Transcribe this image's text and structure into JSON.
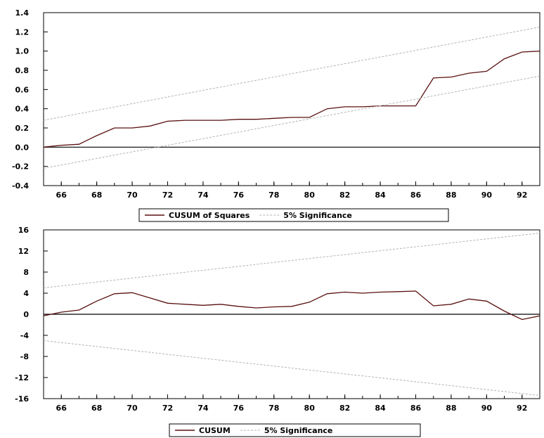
{
  "chart_data": [
    {
      "type": "line",
      "title": "",
      "xlabel": "",
      "ylabel": "",
      "xlim": [
        1965,
        1993
      ],
      "ylim": [
        -0.4,
        1.4
      ],
      "yticks": [
        "-0.4",
        "-0.2",
        "0.0",
        "0.2",
        "0.4",
        "0.6",
        "0.8",
        "1.0",
        "1.2",
        "1.4"
      ],
      "xtick_labels": [
        "66",
        "68",
        "70",
        "72",
        "74",
        "76",
        "78",
        "80",
        "82",
        "84",
        "86",
        "88",
        "90",
        "92"
      ],
      "grid": false,
      "legend_position": "bottom",
      "series": [
        {
          "name": "CUSUM of Squares",
          "color": "#5a1010",
          "style": "solid",
          "x": [
            1965,
            1966,
            1967,
            1968,
            1969,
            1970,
            1971,
            1972,
            1973,
            1974,
            1975,
            1976,
            1977,
            1978,
            1979,
            1980,
            1981,
            1982,
            1983,
            1984,
            1985,
            1986,
            1987,
            1988,
            1989,
            1990,
            1991,
            1992,
            1993
          ],
          "values": [
            0.0,
            0.02,
            0.03,
            0.12,
            0.2,
            0.2,
            0.22,
            0.27,
            0.28,
            0.28,
            0.28,
            0.29,
            0.29,
            0.3,
            0.31,
            0.31,
            0.4,
            0.42,
            0.42,
            0.43,
            0.43,
            0.43,
            0.72,
            0.73,
            0.77,
            0.79,
            0.92,
            0.99,
            1.0
          ]
        },
        {
          "name": "5% Significance",
          "color": "#b4b4b4",
          "style": "dashed",
          "x": [
            1965,
            1993
          ],
          "values": [
            0.28,
            1.25
          ]
        },
        {
          "name": "",
          "color": "#b4b4b4",
          "style": "dashed",
          "x": [
            1965,
            1993
          ],
          "values": [
            -0.22,
            0.74
          ]
        }
      ]
    },
    {
      "type": "line",
      "title": "",
      "xlabel": "",
      "ylabel": "",
      "xlim": [
        1965,
        1993
      ],
      "ylim": [
        -16,
        16
      ],
      "yticks": [
        "-16",
        "-12",
        "-8",
        "-4",
        "0",
        "4",
        "8",
        "12",
        "16"
      ],
      "xtick_labels": [
        "66",
        "68",
        "70",
        "72",
        "74",
        "76",
        "78",
        "80",
        "82",
        "84",
        "86",
        "88",
        "90",
        "92"
      ],
      "grid": false,
      "legend_position": "bottom",
      "series": [
        {
          "name": "CUSUM",
          "color": "#5a1010",
          "style": "solid",
          "x": [
            1965,
            1966,
            1967,
            1968,
            1969,
            1970,
            1971,
            1972,
            1973,
            1974,
            1975,
            1976,
            1977,
            1978,
            1979,
            1980,
            1981,
            1982,
            1983,
            1984,
            1985,
            1986,
            1987,
            1988,
            1989,
            1990,
            1991,
            1992,
            1993
          ],
          "values": [
            -0.3,
            0.4,
            0.8,
            2.5,
            3.9,
            4.1,
            3.1,
            2.1,
            1.9,
            1.7,
            1.9,
            1.5,
            1.2,
            1.4,
            1.5,
            2.3,
            3.9,
            4.2,
            4.0,
            4.2,
            4.3,
            4.4,
            1.6,
            1.9,
            2.9,
            2.5,
            0.6,
            -1.0,
            -0.3
          ]
        },
        {
          "name": "5% Significance",
          "color": "#b4b4b4",
          "style": "dashed",
          "x": [
            1965,
            1993
          ],
          "values": [
            5.0,
            15.4
          ]
        },
        {
          "name": "",
          "color": "#b4b4b4",
          "style": "dashed",
          "x": [
            1965,
            1993
          ],
          "values": [
            -5.0,
            -15.4
          ]
        }
      ]
    }
  ]
}
